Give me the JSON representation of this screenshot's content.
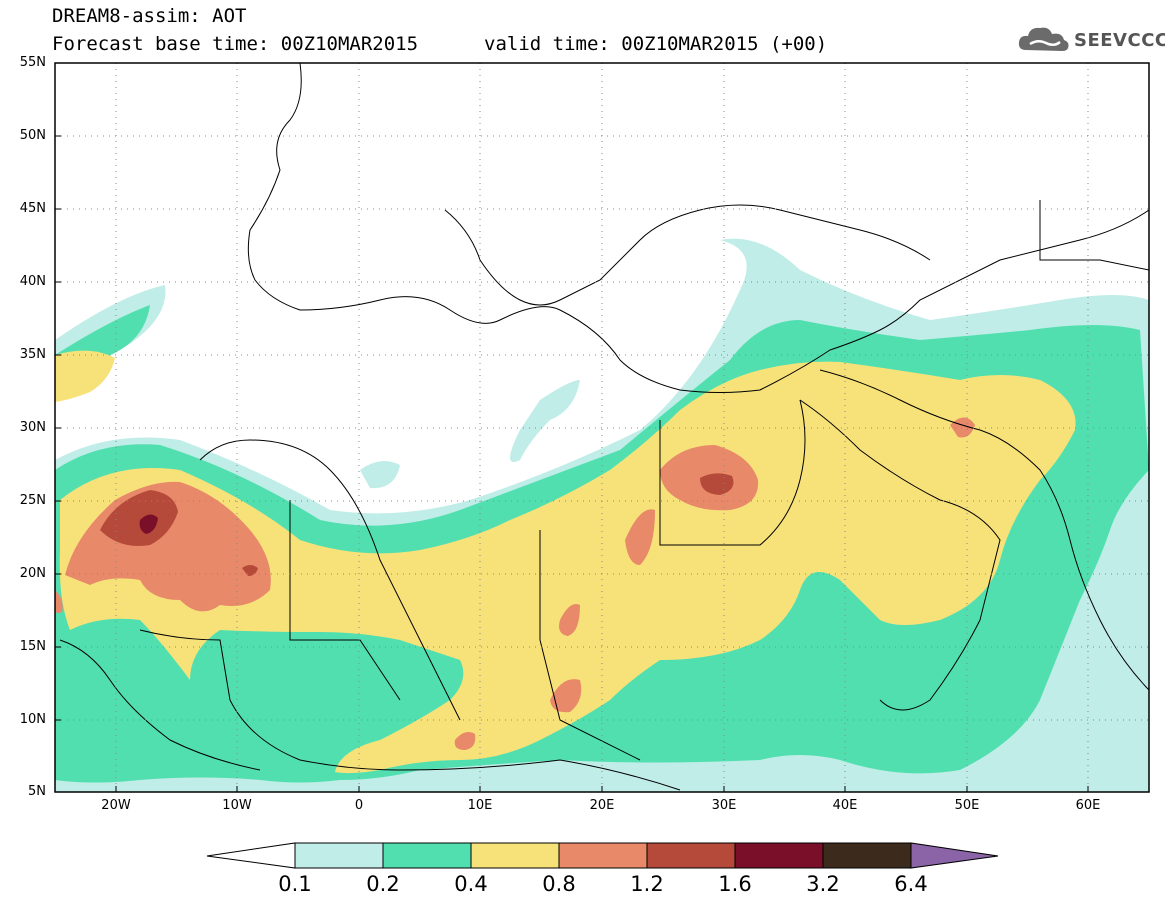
{
  "header": {
    "title": "DREAM8-assim: AOT",
    "base_time": "Forecast base time: 00Z10MAR2015",
    "valid_time": "valid time: 00Z10MAR2015 (+00)",
    "logo_text": "SEEVCCC"
  },
  "map": {
    "lon_range": [
      -25,
      65
    ],
    "lat_range": [
      5,
      55
    ],
    "lat_ticks": [
      "55N",
      "50N",
      "45N",
      "40N",
      "35N",
      "30N",
      "25N",
      "20N",
      "15N",
      "10N",
      "5N"
    ],
    "lon_ticks": [
      "20W",
      "10W",
      "0",
      "10E",
      "20E",
      "30E",
      "40E",
      "50E",
      "60E"
    ],
    "grid": "dotted"
  },
  "colorbar": {
    "labels": [
      "0.1",
      "0.2",
      "0.4",
      "0.8",
      "1.2",
      "1.6",
      "3.2",
      "6.4"
    ],
    "colors": [
      "#ffffff",
      "#c0ede7",
      "#52dfb0",
      "#f7e27a",
      "#e8896a",
      "#b54a3a",
      "#7a0f2a",
      "#3c2a1c",
      "#8a64a6"
    ]
  }
}
